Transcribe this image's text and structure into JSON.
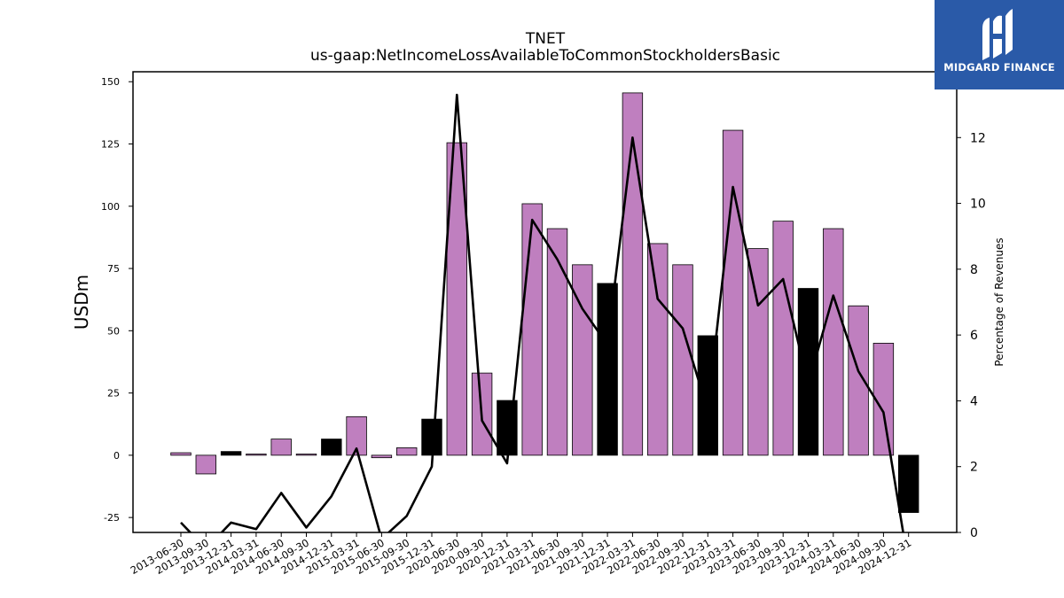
{
  "chart_data": {
    "type": "bar",
    "title": "TNET",
    "subtitle": "us-gaap:NetIncomeLossAvailableToCommonStockholdersBasic",
    "ylabel": "USDm",
    "y2label": "Percentage of Revenues",
    "ylim": [
      -31,
      154
    ],
    "y2lim": [
      0,
      14
    ],
    "yticks": [
      -25,
      0,
      25,
      50,
      75,
      100,
      125,
      150
    ],
    "y2ticks": [
      0,
      2,
      4,
      6,
      8,
      10,
      12
    ],
    "categories": [
      "2013-06-30",
      "2013-09-30",
      "2013-12-31",
      "2014-03-31",
      "2014-06-30",
      "2014-09-30",
      "2014-12-31",
      "2015-03-31",
      "2015-06-30",
      "2015-09-30",
      "2015-12-31",
      "2020-06-30",
      "2020-09-30",
      "2020-12-31",
      "2021-03-31",
      "2021-06-30",
      "2021-09-30",
      "2021-12-31",
      "2022-03-31",
      "2022-06-30",
      "2022-09-30",
      "2022-12-31",
      "2023-03-31",
      "2023-06-30",
      "2023-09-30",
      "2023-12-31",
      "2024-03-31",
      "2024-06-30",
      "2024-09-30",
      "2024-12-31"
    ],
    "series": [
      {
        "kind": "bar",
        "values": [
          1,
          -7.5,
          1.5,
          0.5,
          6.5,
          0.5,
          6.5,
          15.5,
          -1,
          3,
          14.5,
          125.5,
          33,
          22,
          101,
          91,
          76.5,
          69,
          145.5,
          85,
          76.5,
          48,
          130.5,
          83,
          94,
          67,
          91,
          60,
          45,
          -23
        ],
        "highlight": [
          false,
          false,
          true,
          false,
          false,
          false,
          true,
          false,
          false,
          false,
          true,
          false,
          false,
          true,
          false,
          false,
          false,
          true,
          false,
          false,
          false,
          true,
          false,
          false,
          false,
          true,
          false,
          false,
          false,
          true
        ]
      },
      {
        "kind": "line",
        "axis": "right",
        "values": [
          0.3,
          -0.5,
          0.3,
          0.1,
          1.2,
          0.15,
          1.1,
          2.55,
          -0.2,
          0.5,
          2.0,
          13.3,
          3.4,
          2.1,
          9.5,
          8.3,
          6.8,
          5.7,
          12.0,
          7.1,
          6.2,
          3.7,
          10.5,
          6.9,
          7.7,
          4.5,
          7.2,
          4.9,
          3.65,
          -1.0
        ]
      }
    ],
    "colors": {
      "bar": "#bf7fbf",
      "highlight_bar": "#000000",
      "line": "#000000"
    }
  },
  "logo": {
    "text": "MIDGARD FINANCE",
    "background": "#2a5aa8"
  }
}
